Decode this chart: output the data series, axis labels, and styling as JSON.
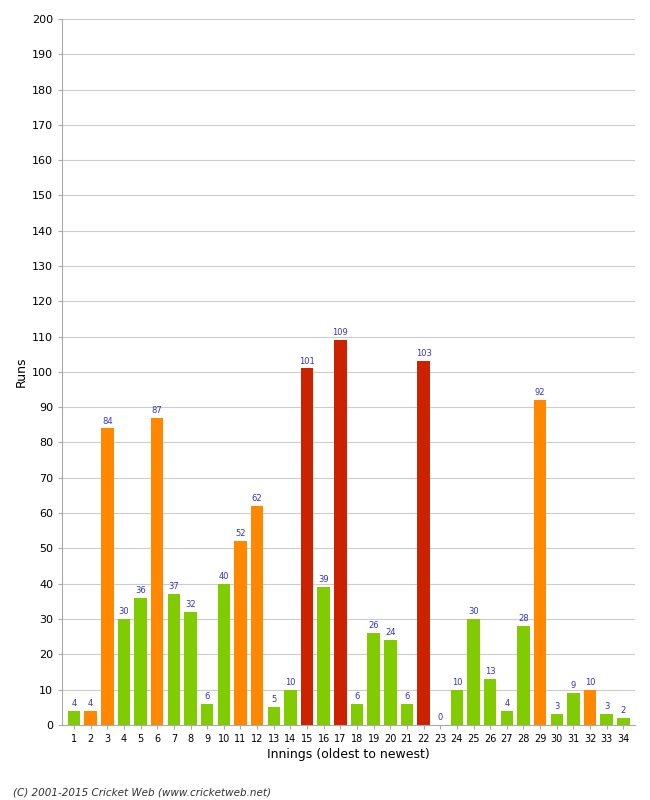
{
  "xlabel": "Innings (oldest to newest)",
  "ylabel": "Runs",
  "footer": "(C) 2001-2015 Cricket Web (www.cricketweb.net)",
  "ylim": [
    0,
    200
  ],
  "yticks": [
    0,
    10,
    20,
    30,
    40,
    50,
    60,
    70,
    80,
    90,
    100,
    110,
    120,
    130,
    140,
    150,
    160,
    170,
    180,
    190,
    200
  ],
  "innings": [
    1,
    2,
    3,
    4,
    5,
    6,
    7,
    8,
    9,
    10,
    11,
    12,
    13,
    14,
    15,
    16,
    17,
    18,
    19,
    20,
    21,
    22,
    23,
    24,
    25,
    26,
    27,
    28,
    29,
    30,
    31,
    32,
    33,
    34
  ],
  "values": [
    4,
    4,
    84,
    30,
    36,
    87,
    37,
    32,
    6,
    40,
    52,
    62,
    5,
    10,
    101,
    39,
    109,
    6,
    26,
    24,
    6,
    103,
    0,
    10,
    30,
    13,
    4,
    28,
    92,
    3,
    9,
    10,
    3,
    2
  ],
  "colors": [
    "#80cc00",
    "#ff8800",
    "#ff8800",
    "#80cc00",
    "#80cc00",
    "#ff8800",
    "#80cc00",
    "#80cc00",
    "#80cc00",
    "#80cc00",
    "#ff8800",
    "#ff8800",
    "#80cc00",
    "#80cc00",
    "#cc2200",
    "#80cc00",
    "#cc2200",
    "#80cc00",
    "#80cc00",
    "#80cc00",
    "#80cc00",
    "#cc2200",
    "#80cc00",
    "#80cc00",
    "#80cc00",
    "#80cc00",
    "#80cc00",
    "#80cc00",
    "#ff8800",
    "#80cc00",
    "#80cc00",
    "#ff8800",
    "#80cc00",
    "#80cc00"
  ],
  "label_color": "#3333cc",
  "bg_color": "#ffffff",
  "plot_bg_color": "#ffffff",
  "grid_color": "#cccccc",
  "bar_width": 0.75,
  "spine_color": "#aaaaaa"
}
